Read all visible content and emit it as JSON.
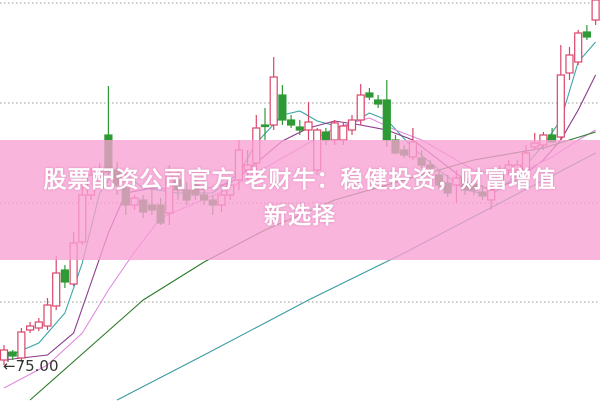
{
  "banner": {
    "line1": "股票配资公司官方 老财牛：稳健投资，财富增值",
    "line2": "新选择"
  },
  "chart_data": {
    "type": "candlestick",
    "title": "",
    "xlabel": "",
    "ylabel": "",
    "price_marker": {
      "label": "75.00",
      "value": 75.0,
      "arrow": "←"
    },
    "grid": "horizontal-dotted",
    "colors": {
      "up": "#d9456a",
      "down": "#2e9a35",
      "band": "#f8a0d4",
      "grid": "#999999"
    },
    "candles_ohlc": [
      [
        75.7,
        77.2,
        75.2,
        76.7
      ],
      [
        76.5,
        76.7,
        75.7,
        76.1
      ],
      [
        75.9,
        78.9,
        75.5,
        78.5
      ],
      [
        78.7,
        79.5,
        78.4,
        79.1
      ],
      [
        78.9,
        79.9,
        78.6,
        79.5
      ],
      [
        79.1,
        81.9,
        78.7,
        81.2
      ],
      [
        81.1,
        86.1,
        80.7,
        84.4
      ],
      [
        84.7,
        85.2,
        82.9,
        83.5
      ],
      [
        83.3,
        88.5,
        83.1,
        87.4
      ],
      [
        87.5,
        94.9,
        87.2,
        92.2
      ],
      [
        92.2,
        94.9,
        91.7,
        94.2
      ],
      [
        94.2,
        95.4,
        93.7,
        94.5
      ],
      [
        98.2,
        103.1,
        94.2,
        94.5
      ],
      [
        94.7,
        95.5,
        92.2,
        93.2
      ],
      [
        92.9,
        93.9,
        90.2,
        91.2
      ],
      [
        91.2,
        92.2,
        90.7,
        91.9
      ],
      [
        91.7,
        92.2,
        89.9,
        90.5
      ],
      [
        91.2,
        93.2,
        90.2,
        90.7
      ],
      [
        91.2,
        91.9,
        89.2,
        89.4
      ],
      [
        90.4,
        95.2,
        89.2,
        94.2
      ],
      [
        93.7,
        94.7,
        91.7,
        92.7
      ],
      [
        92.7,
        93.5,
        91.2,
        91.7
      ],
      [
        93.2,
        93.9,
        91.7,
        92.2
      ],
      [
        92.2,
        92.9,
        91.2,
        91.7
      ],
      [
        91.7,
        92.2,
        90.2,
        91.2
      ],
      [
        91.2,
        92.7,
        90.5,
        92.2
      ],
      [
        92.2,
        93.9,
        91.7,
        93.2
      ],
      [
        93.7,
        97.7,
        92.7,
        96.7
      ],
      [
        94.7,
        96.7,
        93.7,
        95.2
      ],
      [
        95.4,
        100.2,
        94.7,
        98.9
      ],
      [
        99.2,
        100.9,
        97.7,
        99.1
      ],
      [
        99.2,
        106.0,
        98.7,
        104.0
      ],
      [
        102.2,
        103.2,
        99.2,
        99.7
      ],
      [
        99.7,
        100.2,
        98.9,
        99.2
      ],
      [
        99.0,
        99.7,
        98.2,
        98.7
      ],
      [
        98.7,
        101.5,
        97.7,
        99.5
      ],
      [
        94.7,
        98.9,
        94.2,
        98.7
      ],
      [
        98.5,
        98.9,
        97.2,
        97.7
      ],
      [
        97.7,
        99.7,
        97.2,
        99.4
      ],
      [
        97.7,
        99.5,
        97.2,
        99.1
      ],
      [
        98.7,
        100.2,
        98.2,
        99.7
      ],
      [
        99.7,
        103.3,
        99.2,
        102.2
      ],
      [
        102.4,
        102.9,
        101.7,
        102.0
      ],
      [
        101.7,
        102.2,
        100.9,
        101.3
      ],
      [
        101.7,
        103.7,
        97.0,
        97.7
      ],
      [
        97.7,
        98.2,
        96.4,
        96.4
      ],
      [
        96.7,
        97.2,
        95.9,
        96.2
      ],
      [
        96.0,
        98.9,
        95.7,
        97.5
      ],
      [
        95.9,
        96.7,
        94.9,
        95.2
      ],
      [
        95.2,
        95.7,
        94.5,
        94.9
      ],
      [
        94.2,
        94.7,
        92.7,
        93.2
      ],
      [
        93.4,
        94.2,
        92.0,
        92.4
      ],
      [
        93.2,
        94.7,
        91.4,
        93.9
      ],
      [
        93.9,
        94.5,
        92.2,
        92.7
      ],
      [
        93.2,
        93.7,
        92.2,
        92.7
      ],
      [
        92.5,
        93.2,
        91.7,
        92.1
      ],
      [
        91.7,
        93.2,
        90.7,
        92.7
      ],
      [
        93.7,
        95.2,
        93.2,
        94.4
      ],
      [
        94.7,
        95.7,
        94.2,
        95.2
      ],
      [
        94.7,
        95.7,
        94.2,
        95.2
      ],
      [
        94.7,
        97.2,
        94.2,
        96.4
      ],
      [
        97.0,
        98.4,
        96.7,
        97.4
      ],
      [
        97.2,
        98.5,
        96.7,
        98.2
      ],
      [
        98.2,
        98.9,
        97.5,
        97.5
      ],
      [
        98.0,
        107.2,
        97.7,
        104.2
      ],
      [
        104.4,
        107.0,
        103.7,
        106.2
      ],
      [
        105.5,
        108.7,
        105.2,
        108.4
      ],
      [
        108.5,
        109.2,
        107.7,
        108.0
      ],
      [
        109.7,
        111.7,
        109.2,
        111.7
      ]
    ],
    "moving_averages": [
      {
        "color": "#3aa6a6",
        "points": [
          [
            0,
            75.9
          ],
          [
            4,
            77.4
          ],
          [
            7,
            80.4
          ],
          [
            9,
            85.4
          ],
          [
            11,
            92.4
          ],
          [
            13,
            94.9
          ],
          [
            16,
            92.9
          ],
          [
            20,
            92.4
          ],
          [
            24,
            92.4
          ],
          [
            27,
            94.4
          ],
          [
            29,
            97.4
          ],
          [
            32,
            100.2
          ],
          [
            34,
            100.6
          ],
          [
            36,
            99.6
          ],
          [
            39,
            98.9
          ],
          [
            42,
            100.4
          ],
          [
            44,
            99.7
          ],
          [
            47,
            96.9
          ],
          [
            50,
            94.7
          ],
          [
            53,
            92.7
          ],
          [
            56,
            92.2
          ],
          [
            59,
            94.2
          ],
          [
            62,
            97.2
          ],
          [
            64,
            99.7
          ],
          [
            66,
            105.5
          ],
          [
            68,
            107.5
          ]
        ]
      },
      {
        "color": "#8a3a8a",
        "points": [
          [
            0,
            75.7
          ],
          [
            5,
            76.2
          ],
          [
            8,
            78.4
          ],
          [
            10,
            83.4
          ],
          [
            12,
            88.4
          ],
          [
            14,
            92.4
          ],
          [
            17,
            92.9
          ],
          [
            22,
            92.6
          ],
          [
            26,
            93.4
          ],
          [
            29,
            95.4
          ],
          [
            32,
            97.6
          ],
          [
            35,
            98.9
          ],
          [
            38,
            99.6
          ],
          [
            41,
            99.2
          ],
          [
            44,
            98.7
          ],
          [
            47,
            97.7
          ],
          [
            50,
            95.7
          ],
          [
            53,
            93.7
          ],
          [
            56,
            92.7
          ],
          [
            59,
            93.7
          ],
          [
            62,
            95.7
          ],
          [
            64,
            97.7
          ],
          [
            66,
            100.7
          ],
          [
            68,
            104.2
          ]
        ]
      },
      {
        "color": "#e08ae0",
        "points": [
          [
            0,
            72.9
          ],
          [
            5,
            75.2
          ],
          [
            9,
            78.4
          ],
          [
            12,
            82.7
          ],
          [
            15,
            86.5
          ],
          [
            18,
            89.9
          ],
          [
            22,
            91.4
          ],
          [
            26,
            92.9
          ],
          [
            30,
            94.9
          ],
          [
            34,
            96.9
          ],
          [
            38,
            98.9
          ],
          [
            42,
            99.9
          ],
          [
            45,
            98.7
          ],
          [
            48,
            97.7
          ],
          [
            51,
            96.2
          ],
          [
            54,
            94.7
          ],
          [
            57,
            94.2
          ],
          [
            60,
            94.7
          ],
          [
            63,
            96.0
          ],
          [
            66,
            97.7
          ],
          [
            68,
            98.7
          ]
        ]
      },
      {
        "color": "#2a7a2a",
        "points": [
          [
            3,
            71.7
          ],
          [
            16,
            81.7
          ],
          [
            23,
            85.5
          ],
          [
            30,
            88.7
          ],
          [
            38,
            91.7
          ],
          [
            46,
            93.7
          ],
          [
            54,
            95.7
          ],
          [
            62,
            96.9
          ],
          [
            68,
            98.5
          ]
        ]
      },
      {
        "color": "#3a9aa0",
        "points": [
          [
            13,
            71.7
          ],
          [
            23,
            76.2
          ],
          [
            35,
            81.7
          ],
          [
            46,
            86.4
          ],
          [
            57,
            91.4
          ],
          [
            68,
            96.4
          ]
        ]
      }
    ]
  }
}
